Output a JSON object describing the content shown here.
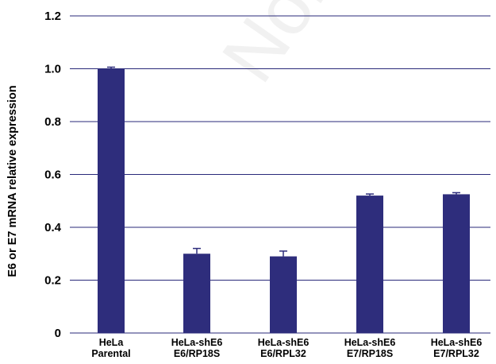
{
  "chart_data": {
    "type": "bar",
    "title": "",
    "xlabel": "",
    "ylabel": "E6 or E7 mRNA relative expression",
    "ylim": [
      0,
      1.2
    ],
    "yticks": [
      0,
      0.2,
      0.4,
      0.6,
      0.8,
      1.0,
      1.2
    ],
    "ytick_labels": [
      "0",
      "0.2",
      "0.4",
      "0.6",
      "0.8",
      "1.0",
      "1.2"
    ],
    "grid": "horizontal",
    "categories": [
      [
        "HeLa",
        "Parental"
      ],
      [
        "HeLa-shE6",
        "E6/RP18S"
      ],
      [
        "HeLa-shE6",
        "E6/RPL32"
      ],
      [
        "HeLa-shE6",
        "E7/RP18S"
      ],
      [
        "HeLa-shE6",
        "E7/RPL32"
      ]
    ],
    "values": [
      1.0,
      0.3,
      0.29,
      0.52,
      0.525
    ],
    "errors": [
      0.006,
      0.02,
      0.02,
      0.006,
      0.006
    ],
    "bar_color": "#2e2d7c",
    "watermark": "Non"
  }
}
